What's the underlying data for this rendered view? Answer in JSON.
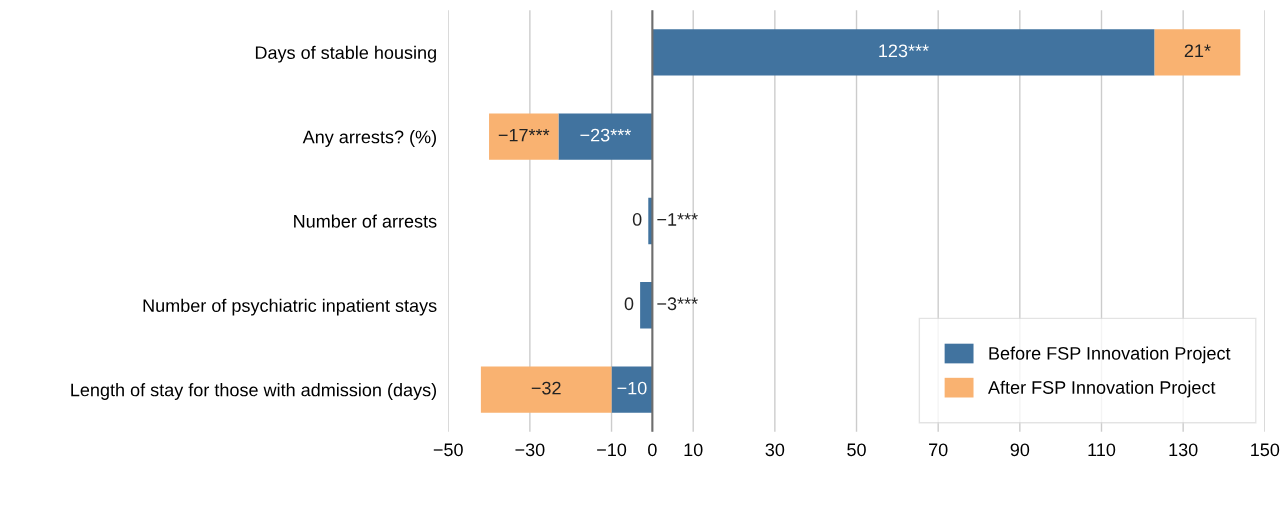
{
  "chart_data": {
    "type": "bar",
    "orientation": "horizontal",
    "stacked": true,
    "categories": [
      "Days of stable housing",
      "Any arrests? (%)",
      "Number of arrests",
      "Number of psychiatric inpatient stays",
      "Length of stay for those with admission (days)"
    ],
    "series": [
      {
        "name": "Before FSP Innovation Project",
        "color": "#41739f",
        "values": [
          123,
          -23,
          -1,
          -3,
          -10
        ],
        "value_labels": [
          "123***",
          "−23***",
          "−1***",
          "−3***",
          "−10"
        ]
      },
      {
        "name": "After FSP Innovation Project",
        "color": "#f9b271",
        "values": [
          21,
          -17,
          0,
          0,
          -32
        ],
        "value_labels": [
          "21*",
          "−17***",
          "0",
          "0",
          "−32"
        ]
      }
    ],
    "xlim": [
      -50,
      150
    ],
    "xticks": [
      {
        "value": -50,
        "label": "−50"
      },
      {
        "value": -30,
        "label": "−30"
      },
      {
        "value": -10,
        "label": "−10"
      },
      0,
      10,
      30,
      50,
      70,
      90,
      110,
      130,
      150
    ],
    "grid": "x",
    "ref_lines": [
      {
        "axis": "x",
        "value": 0,
        "label": null,
        "color": "#6e6e6e"
      }
    ],
    "legend": "lower right"
  }
}
